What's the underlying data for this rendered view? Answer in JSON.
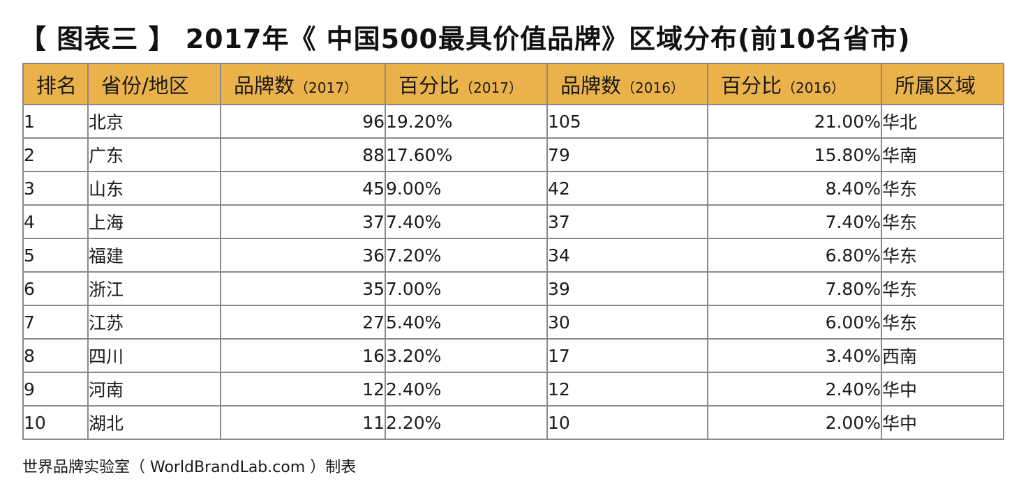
{
  "title": "【 图表三 】 2017年《 中国500最具价值品牌》区域分布(前10名省市)",
  "table": {
    "headers": [
      {
        "label": "排名",
        "year": ""
      },
      {
        "label": "省份/地区",
        "year": ""
      },
      {
        "label": "品牌数",
        "year": "（2017）"
      },
      {
        "label": "百分比",
        "year": "（2017）"
      },
      {
        "label": "品牌数",
        "year": "（2016）"
      },
      {
        "label": "百分比",
        "year": "（2016）"
      },
      {
        "label": "所属区域",
        "year": ""
      }
    ],
    "rows": [
      [
        "1",
        "北京",
        "96",
        "19.20%",
        "105",
        "21.00%",
        "华北"
      ],
      [
        "2",
        "广东",
        "88",
        "17.60%",
        "79",
        "15.80%",
        "华南"
      ],
      [
        "3",
        "山东",
        "45",
        "9.00%",
        "42",
        "8.40%",
        "华东"
      ],
      [
        "4",
        "上海",
        "37",
        "7.40%",
        "37",
        "7.40%",
        "华东"
      ],
      [
        "5",
        "福建",
        "36",
        "7.20%",
        "34",
        "6.80%",
        "华东"
      ],
      [
        "6",
        "浙江",
        "35",
        "7.00%",
        "39",
        "7.80%",
        "华东"
      ],
      [
        "7",
        "江苏",
        "27",
        "5.40%",
        "30",
        "6.00%",
        "华东"
      ],
      [
        "8",
        "四川",
        "16",
        "3.20%",
        "17",
        "3.40%",
        "西南"
      ],
      [
        "9",
        "河南",
        "12",
        "2.40%",
        "12",
        "2.40%",
        "华中"
      ],
      [
        "10",
        "湖北",
        "11",
        "2.20%",
        "10",
        "2.00%",
        "华中"
      ]
    ]
  },
  "footer": "世界品牌实验室（ WorldBrandLab.com ）制表",
  "colors": {
    "header_bg": "#ebb24b",
    "border": "#8a8a8a"
  }
}
